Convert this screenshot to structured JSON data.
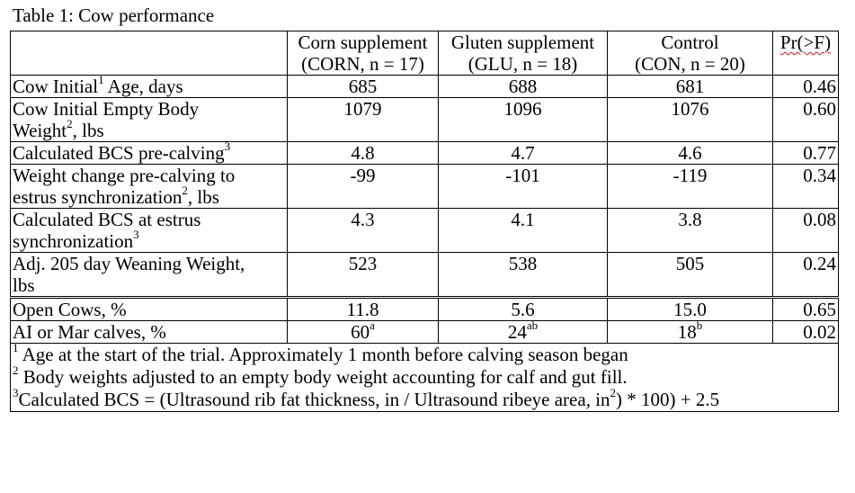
{
  "caption": "Table 1: Cow performance",
  "columns": [
    {
      "line1": "Corn supplement",
      "line2": "(CORN, n = 17)"
    },
    {
      "line1": "Gluten supplement",
      "line2": "(GLU, n = 18)"
    },
    {
      "line1": "Control",
      "line2": "(CON, n = 20)"
    },
    {
      "line1": "Pr(>F)",
      "line2": ""
    }
  ],
  "rows": [
    {
      "label": "Cow Initial",
      "sup": "1",
      "label_rest": " Age, days",
      "label2": "",
      "sup2": "",
      "label2_rest": "",
      "corn": "685",
      "glu": "688",
      "con": "681",
      "p": "0.46"
    },
    {
      "label": "Cow Initial Empty Body",
      "sup": "",
      "label_rest": "",
      "label2": "Weight",
      "sup2": "2",
      "label2_rest": ", lbs",
      "corn": "1079",
      "glu": "1096",
      "con": "1076",
      "p": "0.60"
    },
    {
      "label": "Calculated BCS pre-calving",
      "sup": "3",
      "label_rest": "",
      "label2": "",
      "sup2": "",
      "label2_rest": "",
      "corn": "4.8",
      "glu": "4.7",
      "con": "4.6",
      "p": "0.77"
    },
    {
      "label": "Weight change pre-calving to",
      "sup": "",
      "label_rest": "",
      "label2": "estrus synchronization",
      "sup2": "2",
      "label2_rest": ", lbs",
      "corn": "-99",
      "glu": "-101",
      "con": "-119",
      "p": "0.34"
    },
    {
      "label": "Calculated BCS at estrus",
      "sup": "",
      "label_rest": "",
      "label2": "synchronization",
      "sup2": "3",
      "label2_rest": "",
      "corn": "4.3",
      "glu": "4.1",
      "con": "3.8",
      "p": "0.08"
    },
    {
      "label": "Adj. 205 day Weaning Weight,",
      "sup": "",
      "label_rest": "",
      "label2": "lbs",
      "sup2": "",
      "label2_rest": "",
      "corn": "523",
      "glu": "538",
      "con": "505",
      "p": "0.24"
    },
    {
      "label": "Open Cows, %",
      "sup": "",
      "label_rest": "",
      "label2": "",
      "sup2": "",
      "label2_rest": "",
      "corn": "11.8",
      "glu": "5.6",
      "con": "15.0",
      "p": "0.65"
    },
    {
      "label": "AI or Mar calves, %",
      "sup": "",
      "label_rest": "",
      "label2": "",
      "sup2": "",
      "label2_rest": "",
      "corn": "60",
      "corn_sup": "a",
      "glu": "24",
      "glu_sup": "ab",
      "con": "18",
      "con_sup": "b",
      "p": "0.02"
    }
  ],
  "footnotes": [
    {
      "mark": "1",
      "text": " Age at the start of the trial. Approximately 1 month before calving season began"
    },
    {
      "mark": "2",
      "text": " Body weights adjusted to an empty body weight accounting for calf and gut fill."
    },
    {
      "mark": "3",
      "text_a": "Calculated BCS = (Ultrasound rib fat thickness, in / Ultrasound ribeye area, in",
      "text_sup": "2",
      "text_b": ") * 100) + 2.5"
    }
  ]
}
